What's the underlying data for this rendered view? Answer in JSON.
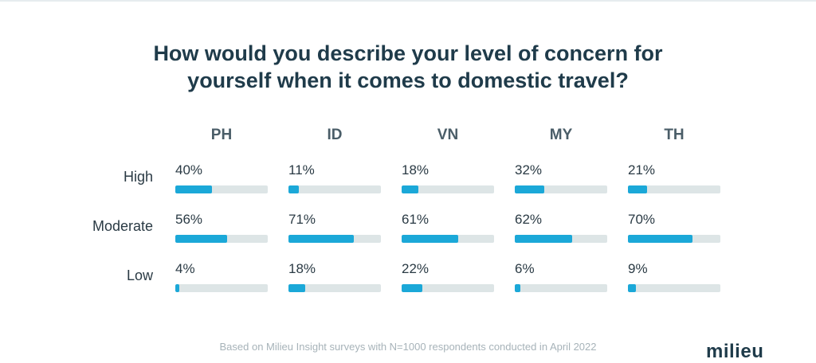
{
  "title_line1": "How would you describe your level of concern for",
  "title_line2": "yourself when it comes to domestic travel?",
  "footnote": "Based on Milieu Insight surveys with N=1000 respondents conducted in April 2022",
  "logo": "milieu",
  "colors": {
    "fill": "#1ba8d8",
    "track": "#dde5e6",
    "title": "#1f3b4a"
  },
  "chart_data": {
    "type": "bar",
    "title": "How would you describe your level of concern for yourself when it comes to domestic travel?",
    "unit": "%",
    "categories": [
      "High",
      "Moderate",
      "Low"
    ],
    "columns": [
      "PH",
      "ID",
      "VN",
      "MY",
      "TH"
    ],
    "series": [
      {
        "name": "PH",
        "values": [
          40,
          56,
          4
        ],
        "labels": [
          "40%",
          "56%",
          "4%"
        ]
      },
      {
        "name": "ID",
        "values": [
          11,
          71,
          18
        ],
        "labels": [
          "11%",
          "71%",
          "18%"
        ]
      },
      {
        "name": "VN",
        "values": [
          18,
          61,
          22
        ],
        "labels": [
          "18%",
          "61%",
          "22%"
        ]
      },
      {
        "name": "MY",
        "values": [
          32,
          62,
          6
        ],
        "labels": [
          "32%",
          "62%",
          "6%"
        ]
      },
      {
        "name": "TH",
        "values": [
          21,
          70,
          9
        ],
        "labels": [
          "21%",
          "70%",
          "9%"
        ]
      }
    ],
    "ylim": [
      0,
      100
    ]
  }
}
